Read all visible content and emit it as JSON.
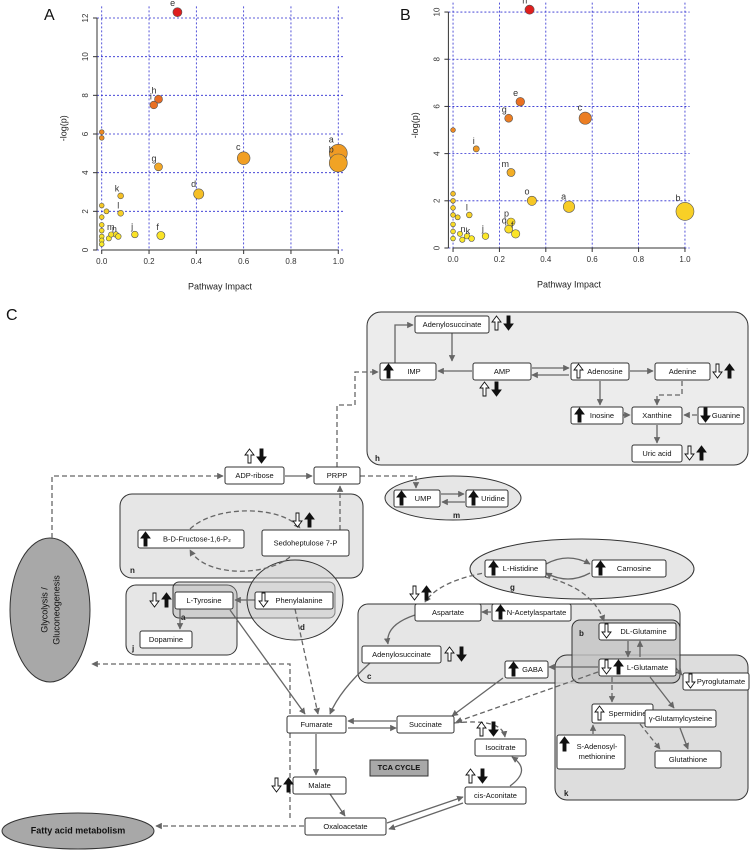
{
  "panel_labels": [
    "A",
    "B",
    "C"
  ],
  "chart_data": [
    {
      "type": "scatter",
      "x_label": "Pathway Impact",
      "y_label": "-log(p)",
      "x": [
        0.32,
        0.24,
        0.22,
        0.24,
        0.6,
        1.0,
        1.0,
        0.41,
        0.08,
        0.08,
        0.14,
        0.25,
        0.06,
        0.07,
        0,
        0,
        0,
        0,
        0,
        0,
        0,
        0,
        0,
        0.02,
        0.03,
        0.04
      ],
      "values": [
        12.3,
        7.8,
        7.5,
        4.3,
        4.75,
        5.0,
        4.5,
        2.9,
        2.8,
        1.9,
        0.8,
        0.75,
        0.8,
        0.7,
        6.1,
        5.8,
        2.3,
        1.7,
        1.3,
        1.0,
        0.7,
        0.5,
        0.3,
        2.0,
        0.6,
        0.8
      ],
      "labels": [
        "e",
        "h",
        "i",
        "g",
        "c",
        "a",
        "b",
        "d",
        "k",
        "l",
        "j",
        "f",
        "m",
        "n",
        null,
        null,
        null,
        null,
        null,
        null,
        null,
        null,
        null,
        null,
        null,
        null
      ],
      "xlim": [
        -0.02,
        1.02
      ],
      "ylim": [
        0,
        12.6
      ],
      "xticks": [
        {
          "value": 0,
          "label": "0.0"
        },
        0.2,
        0.4,
        0.6,
        0.8,
        {
          "value": 1,
          "label": "1.0"
        }
      ],
      "yticks": [
        0,
        2,
        4,
        6,
        8,
        10,
        12
      ],
      "grid": true,
      "grid_color": "#2b2bd0"
    },
    {
      "type": "scatter",
      "x_label": "Pathway Impact",
      "y_label": "-log(p)",
      "x": [
        0.33,
        0.29,
        0.24,
        0.57,
        0.1,
        0.25,
        0.34,
        0.5,
        1.0,
        0.07,
        0.25,
        0.24,
        0.27,
        0.14,
        0.06,
        0.08,
        0,
        0,
        0,
        0,
        0,
        0,
        0,
        0,
        0.02,
        0.03,
        0.04
      ],
      "values": [
        10.1,
        6.2,
        5.5,
        5.5,
        4.2,
        3.2,
        2.0,
        1.75,
        1.55,
        1.4,
        1.1,
        0.8,
        0.6,
        0.5,
        0.5,
        0.4,
        5.0,
        2.3,
        2.0,
        1.7,
        1.4,
        1.0,
        0.7,
        0.4,
        1.3,
        0.6,
        0.35
      ],
      "labels": [
        "h",
        "e",
        "g",
        "c",
        "i",
        "m",
        "o",
        "a",
        "b",
        "l",
        "p",
        "q",
        "f",
        "j",
        "n",
        "k",
        null,
        null,
        null,
        null,
        null,
        null,
        null,
        null,
        null,
        null,
        null
      ],
      "xlim": [
        -0.02,
        1.02
      ],
      "ylim": [
        0,
        10.4
      ],
      "xticks": [
        {
          "value": 0,
          "label": "0.0"
        },
        0.2,
        0.4,
        0.6,
        0.8,
        {
          "value": 1,
          "label": "1.0"
        }
      ],
      "yticks": [
        0,
        2,
        4,
        6,
        8,
        10
      ],
      "grid": true,
      "grid_color": "#2b2bd0"
    }
  ],
  "diagram": {
    "nodes": [
      "Adenylosuccinate",
      "IMP",
      "AMP",
      "Adenosine",
      "Adenine",
      "Inosine",
      "Xanthine",
      "Guanine",
      "Uric acid",
      "ADP-ribose",
      "PRPP",
      "UMP",
      "Uridine",
      "B-D-Fructose-1,6-P₂",
      "Sedoheptulose 7-P",
      "L-Tyrosine",
      "Dopamine",
      "Phenylalanine",
      "L-Histidine",
      "Carnosine",
      "Aspartate",
      "N-Acetylaspartate",
      "Adenylosuccinate",
      "GABA",
      "DL-Glutamine",
      "L-Glutamate",
      "Pyroglutamate",
      "Spermidine",
      "γ-Glutamylcysteine",
      "Glutathione",
      [
        "S-Adenosyl-",
        "methionine"
      ],
      "Succinate",
      "Fumarate",
      "Isocitrate",
      "Malate",
      "cis-Aconitate",
      "Oxaloacetate"
    ],
    "groups": [
      "h",
      "m",
      "n",
      "j",
      "a",
      "d",
      "g",
      "c",
      "b",
      "k"
    ],
    "pathways": [
      [
        "Glycolysis /",
        "Gluconeogenesis"
      ],
      "Fatty acid metabolism"
    ],
    "cycle_label": "TCA CYCLE"
  }
}
